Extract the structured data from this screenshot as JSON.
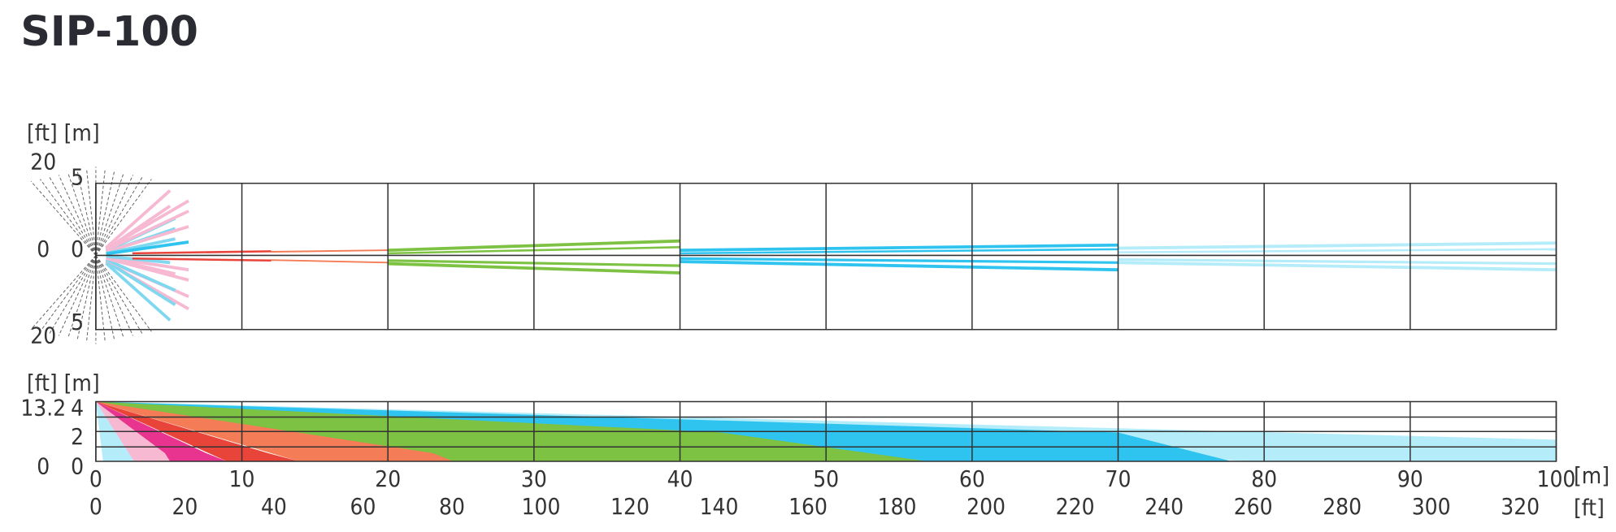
{
  "title": "SIP-100",
  "top_view": {
    "units": "[ft] [m]",
    "ft_labels": [
      20,
      0,
      20
    ],
    "m_labels": [
      5,
      0,
      5
    ]
  },
  "side_view": {
    "units": "[ft] [m]",
    "ft_labels": [
      13.2,
      0
    ],
    "m_labels": [
      4,
      2,
      0
    ]
  },
  "x_axis": {
    "m_ticks": [
      0,
      10,
      20,
      30,
      40,
      50,
      60,
      70,
      80,
      90,
      100
    ],
    "m_unit": "[m]",
    "ft_ticks": [
      0,
      20,
      40,
      60,
      80,
      100,
      120,
      140,
      160,
      180,
      200,
      220,
      240,
      260,
      280,
      300,
      320
    ],
    "ft_unit": "[ft]"
  }
}
